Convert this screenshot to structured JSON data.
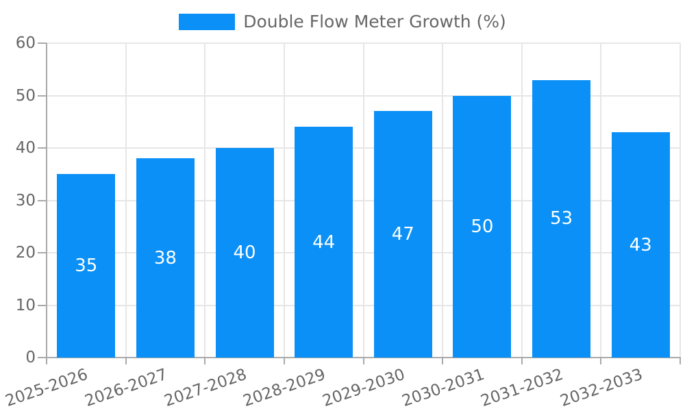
{
  "chart_data": {
    "type": "bar",
    "title": "Double Flow Meter Growth (%)",
    "categories": [
      "2025-2026",
      "2026-2027",
      "2027-2028",
      "2028-2029",
      "2029-2030",
      "2030-2031",
      "2031-2032",
      "2032-2033"
    ],
    "values": [
      35,
      38,
      40,
      44,
      47,
      50,
      53,
      43
    ],
    "yticks": [
      0,
      10,
      20,
      30,
      40,
      50,
      60
    ],
    "ylim": [
      0,
      60
    ],
    "xlabel": "",
    "ylabel": "",
    "grid": true,
    "legend": {
      "position": "top",
      "label": "Double Flow Meter Growth (%)"
    },
    "x_tick_rotation_deg": -19,
    "value_labels": "inside-center",
    "colors": {
      "bar": "#0a90f6",
      "value_label": "#ffffff",
      "text": "#666666",
      "grid": "#e6e6e6",
      "axis": "#a9a9a9",
      "background": "#ffffff"
    }
  }
}
